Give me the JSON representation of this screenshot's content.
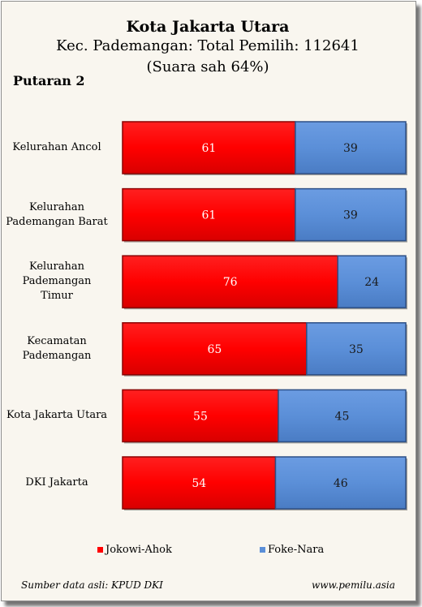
{
  "chart_data": {
    "type": "bar",
    "orientation": "horizontal",
    "stacked": true,
    "percent": true,
    "title": "Kota Jakarta Utara",
    "subtitle": "Kec. Pademangan: Total Pemilih: 112641",
    "subtitle2": "(Suara sah 64%)",
    "round_label": "Putaran 2",
    "categories": [
      "Kelurahan Ancol",
      "Kelurahan Pademangan Barat",
      "Kelurahan Pademangan Timur",
      "Kecamatan Pademangan",
      "Kota Jakarta Utara",
      "DKI Jakarta"
    ],
    "category_lines": [
      [
        "Kelurahan Ancol"
      ],
      [
        "Kelurahan",
        "Pademangan Barat"
      ],
      [
        "Kelurahan",
        "Pademangan",
        "Timur"
      ],
      [
        "Kecamatan",
        "Pademangan"
      ],
      [
        "Kota Jakarta Utara"
      ],
      [
        "DKI Jakarta"
      ]
    ],
    "series": [
      {
        "name": "Jokowi-Ahok",
        "values": [
          61,
          61,
          76,
          65,
          55,
          54
        ],
        "color": "#ff0000"
      },
      {
        "name": "Foke-Nara",
        "values": [
          39,
          39,
          24,
          35,
          45,
          46
        ],
        "color": "#5b8fd8"
      }
    ],
    "xlim": [
      0,
      100
    ],
    "legend_position": "bottom",
    "grid": false
  },
  "footer": {
    "source": "Sumber data asli: KPUD DKI",
    "website": "www.pemilu.asia"
  }
}
